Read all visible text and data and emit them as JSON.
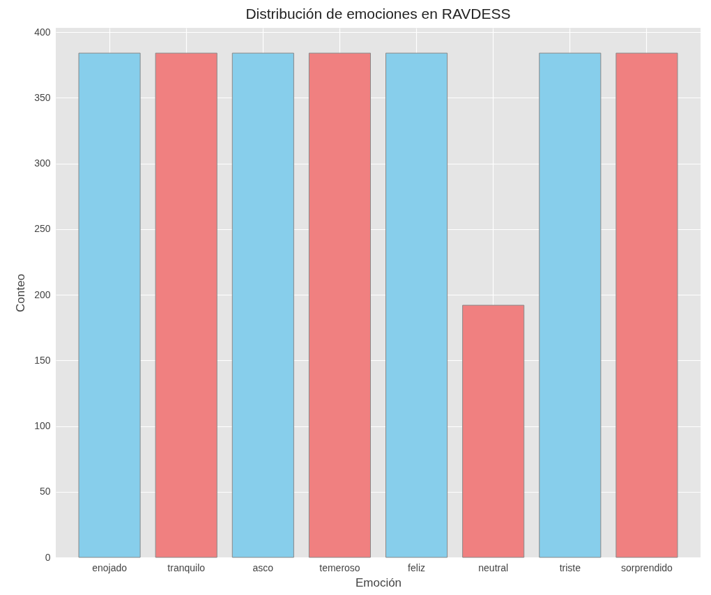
{
  "chart_data": {
    "type": "bar",
    "title": "Distribución de emociones en RAVDESS",
    "xlabel": "Emoción",
    "ylabel": "Conteo",
    "categories": [
      "enojado",
      "tranquilo",
      "asco",
      "temeroso",
      "feliz",
      "neutral",
      "triste",
      "sorprendido"
    ],
    "values": [
      384,
      384,
      384,
      384,
      384,
      192,
      384,
      384
    ],
    "colors": [
      "#87ceeb",
      "#f08080",
      "#87ceeb",
      "#f08080",
      "#87ceeb",
      "#f08080",
      "#87ceeb",
      "#f08080"
    ],
    "ylim": [
      0,
      403.2
    ],
    "yticks": [
      0,
      50,
      100,
      150,
      200,
      250,
      300,
      350,
      400
    ],
    "grid": true
  }
}
